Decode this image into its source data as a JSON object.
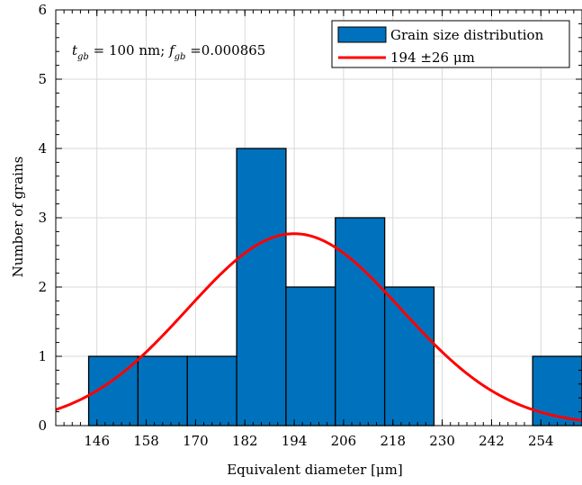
{
  "chart_data": {
    "type": "bar",
    "subtype": "histogram-with-normal-fit",
    "xlabel": "Equivalent diameter [μm]",
    "ylabel": "Number of grains",
    "annotation": "t_gb = 100 nm; f_gb = 0.000865",
    "annotation_parts": {
      "t_sym": "t",
      "t_sub": "gb",
      "t_text": " = 100 nm; ",
      "f_sym": "f",
      "f_sub": "gb",
      "f_text": " =0.000865"
    },
    "xlim": [
      136,
      264
    ],
    "ylim": [
      0,
      6
    ],
    "xticks": [
      146,
      158,
      170,
      182,
      194,
      206,
      218,
      230,
      242,
      254
    ],
    "yticks": [
      0,
      1,
      2,
      3,
      4,
      5,
      6
    ],
    "grid": true,
    "legend_position": "top-right",
    "bin_edges": [
      144,
      156,
      168,
      180,
      192,
      204,
      216,
      228,
      240,
      252,
      264
    ],
    "bins": [
      {
        "x0": 144,
        "x1": 156,
        "count": 1
      },
      {
        "x0": 156,
        "x1": 168,
        "count": 1
      },
      {
        "x0": 168,
        "x1": 180,
        "count": 1
      },
      {
        "x0": 180,
        "x1": 192,
        "count": 4
      },
      {
        "x0": 192,
        "x1": 204,
        "count": 2
      },
      {
        "x0": 204,
        "x1": 216,
        "count": 3
      },
      {
        "x0": 216,
        "x1": 228,
        "count": 2
      },
      {
        "x0": 228,
        "x1": 240,
        "count": 0
      },
      {
        "x0": 240,
        "x1": 252,
        "count": 0
      },
      {
        "x0": 252,
        "x1": 264,
        "count": 1
      }
    ],
    "fit": {
      "mean": 194,
      "std": 26,
      "peak": 2.77
    },
    "series": [
      {
        "name": "Grain size distribution",
        "kind": "histogram",
        "color": "#0072bd"
      },
      {
        "name": "194 ±26 μm",
        "kind": "normal-fit-line",
        "color": "#ff0000"
      }
    ]
  }
}
